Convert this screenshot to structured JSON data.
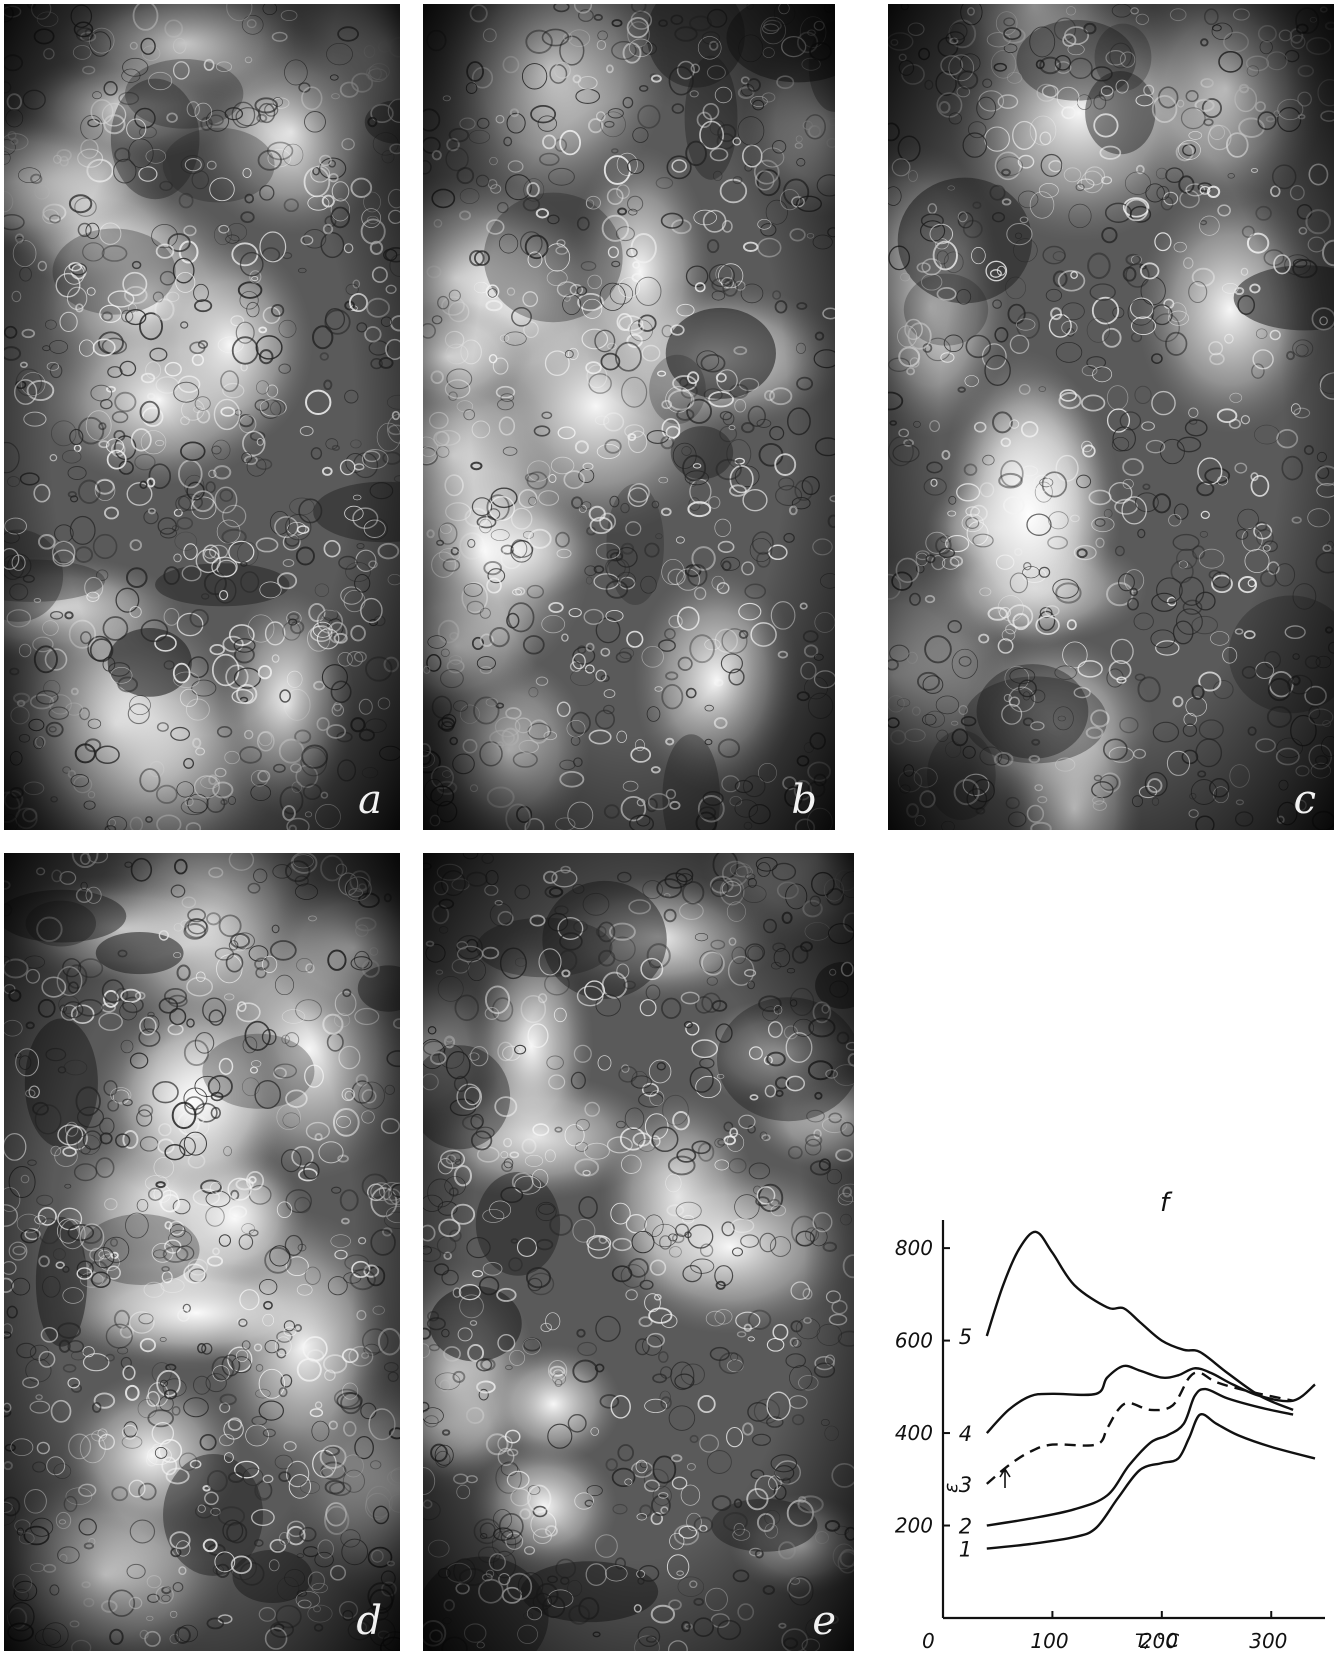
{
  "panels": [
    {
      "id": "a",
      "label": "a"
    },
    {
      "id": "b",
      "label": "b"
    },
    {
      "id": "c",
      "label": "c"
    },
    {
      "id": "d",
      "label": "d"
    },
    {
      "id": "e",
      "label": "e"
    }
  ],
  "chart_data": {
    "type": "line",
    "title": "f",
    "xlabel": "T, °C",
    "ylabel": "ε",
    "xlim": [
      0,
      340
    ],
    "ylim": [
      0,
      850
    ],
    "xticks": [
      0,
      100,
      200,
      300
    ],
    "xtick_labels": [
      "0",
      "100",
      "200",
      "300"
    ],
    "yticks": [
      200,
      400,
      600,
      800
    ],
    "ytick_labels": [
      "200",
      "400",
      "600",
      "800"
    ],
    "grid": false,
    "series": [
      {
        "name": "1",
        "dashed": false,
        "x": [
          40,
          80,
          120,
          140,
          160,
          180,
          200,
          215,
          225,
          235,
          250,
          270,
          300,
          340
        ],
        "y": [
          150,
          160,
          175,
          195,
          260,
          320,
          335,
          345,
          390,
          440,
          420,
          395,
          370,
          345
        ]
      },
      {
        "name": "2",
        "dashed": false,
        "x": [
          40,
          80,
          120,
          150,
          170,
          190,
          205,
          220,
          230,
          240,
          260,
          290,
          320
        ],
        "y": [
          200,
          215,
          235,
          265,
          330,
          380,
          395,
          420,
          480,
          495,
          475,
          455,
          440
        ]
      },
      {
        "name": "3",
        "dashed": true,
        "x": [
          40,
          60,
          80,
          100,
          140,
          150,
          160,
          170,
          190,
          210,
          225,
          235,
          250,
          280,
          320
        ],
        "y": [
          290,
          330,
          360,
          375,
          375,
          410,
          450,
          465,
          450,
          460,
          520,
          530,
          510,
          490,
          470
        ]
      },
      {
        "name": "4",
        "dashed": false,
        "x": [
          40,
          60,
          80,
          100,
          140,
          150,
          165,
          180,
          200,
          215,
          230,
          245,
          265,
          290,
          320,
          340
        ],
        "y": [
          400,
          450,
          480,
          485,
          485,
          520,
          545,
          535,
          520,
          525,
          540,
          530,
          505,
          480,
          470,
          505
        ]
      },
      {
        "name": "5",
        "dashed": false,
        "x": [
          40,
          55,
          70,
          85,
          100,
          120,
          150,
          165,
          180,
          200,
          220,
          235,
          260,
          290,
          320
        ],
        "y": [
          610,
          720,
          800,
          835,
          790,
          720,
          672,
          670,
          640,
          600,
          580,
          575,
          530,
          480,
          450
        ]
      }
    ]
  }
}
